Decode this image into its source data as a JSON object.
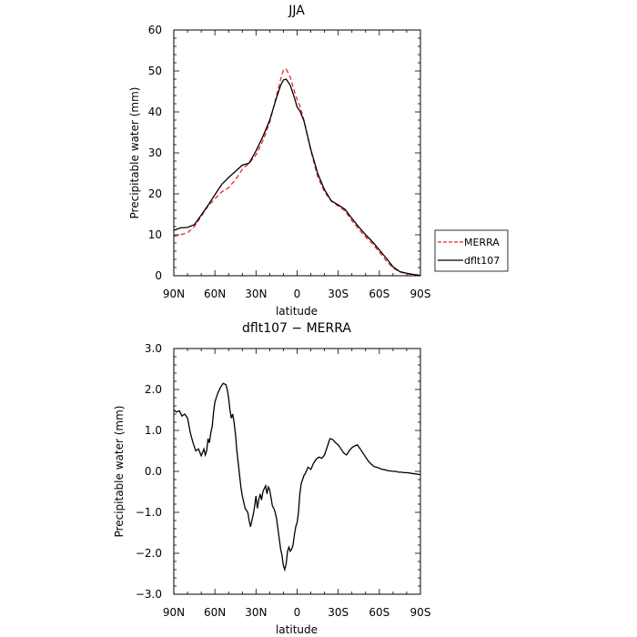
{
  "chart_data": [
    {
      "type": "line",
      "title": "JJA",
      "xlabel": "latitude",
      "ylabel": "Precipitable water (mm)",
      "xlim": [
        90,
        -90
      ],
      "ylim": [
        0,
        60
      ],
      "x_ticks": [
        90,
        60,
        30,
        0,
        -30,
        -60,
        -90
      ],
      "x_tick_labels": [
        "90N",
        "60N",
        "30N",
        "0",
        "30S",
        "60S",
        "90S"
      ],
      "y_ticks": [
        0,
        10,
        20,
        30,
        40,
        50,
        60
      ],
      "y_tick_labels": [
        "0",
        "10",
        "20",
        "30",
        "40",
        "50",
        "60"
      ],
      "grid": false,
      "legend_position": "right",
      "series": [
        {
          "name": "MERRA",
          "color": "#e8262a",
          "style": "dashed",
          "x": [
            90,
            85,
            80,
            75,
            70,
            65,
            60,
            55,
            50,
            45,
            40,
            35,
            30,
            25,
            20,
            15,
            12,
            10,
            8,
            5,
            2,
            0,
            -2,
            -5,
            -10,
            -15,
            -20,
            -25,
            -30,
            -35,
            -40,
            -45,
            -50,
            -55,
            -60,
            -65,
            -70,
            -75,
            -80,
            -85,
            -90
          ],
          "y": [
            9.6,
            10,
            10.5,
            12,
            14.5,
            17,
            18.8,
            20.5,
            21.5,
            23.5,
            26,
            27.5,
            29.5,
            33,
            37.5,
            44,
            48,
            50.2,
            50.5,
            48.5,
            45,
            43,
            41.5,
            38,
            30.5,
            24.2,
            20.5,
            18.2,
            17,
            15.8,
            13.5,
            11.3,
            9.5,
            7.8,
            5.8,
            3.7,
            1.9,
            0.9,
            0.5,
            0.2,
            0.1
          ]
        },
        {
          "name": "dflt107",
          "color": "#000000",
          "style": "solid",
          "x": [
            90,
            85,
            80,
            75,
            70,
            65,
            60,
            55,
            50,
            45,
            40,
            35,
            30,
            25,
            20,
            15,
            12,
            10,
            8,
            5,
            2,
            0,
            -2,
            -5,
            -10,
            -15,
            -20,
            -25,
            -30,
            -35,
            -40,
            -45,
            -50,
            -55,
            -60,
            -65,
            -70,
            -75,
            -80,
            -85,
            -90
          ],
          "y": [
            11.1,
            11.7,
            11.8,
            12.5,
            14.8,
            17.2,
            19.8,
            22.3,
            24,
            25.5,
            27,
            27.5,
            30.5,
            34,
            38,
            43.5,
            46.5,
            47.8,
            48,
            46.5,
            43.5,
            41.2,
            40.3,
            37.8,
            30.8,
            25,
            21,
            18.3,
            17.3,
            16.2,
            14,
            11.9,
            10,
            8.3,
            6.3,
            4.3,
            2.2,
            1,
            0.6,
            0.3,
            0.1
          ]
        }
      ]
    },
    {
      "type": "line",
      "title": "dflt107 − MERRA",
      "xlabel": "latitude",
      "ylabel": "Precipitable water (mm)",
      "xlim": [
        90,
        -90
      ],
      "ylim": [
        -3,
        3
      ],
      "x_ticks": [
        90,
        60,
        30,
        0,
        -30,
        -60,
        -90
      ],
      "x_tick_labels": [
        "90N",
        "60N",
        "30N",
        "0",
        "30S",
        "60S",
        "90S"
      ],
      "y_ticks": [
        -3,
        -2,
        -1,
        0,
        1,
        2,
        3
      ],
      "y_tick_labels": [
        "−3.0",
        "−2.0",
        "−1.0",
        "0.0",
        "1.0",
        "2.0",
        "3.0"
      ],
      "grid": false,
      "series": [
        {
          "color": "#000000",
          "style": "solid",
          "x": [
            90,
            88,
            86,
            84,
            82,
            80,
            78,
            76,
            74,
            72,
            70,
            68,
            67,
            66,
            65,
            64,
            63,
            62,
            61,
            60,
            58,
            56,
            54,
            52,
            51,
            50,
            49,
            48,
            47,
            46,
            45,
            44,
            43,
            42,
            41,
            40,
            38,
            36,
            35,
            34,
            32,
            31,
            30,
            29,
            28,
            27,
            26,
            25,
            24,
            23,
            22,
            21,
            20,
            19,
            18,
            17,
            16,
            15,
            14,
            13,
            12,
            11,
            10,
            9,
            8,
            7,
            6,
            5,
            4,
            3,
            2,
            1,
            0,
            -1,
            -2,
            -3,
            -4,
            -5,
            -6,
            -8,
            -10,
            -12,
            -14,
            -16,
            -18,
            -20,
            -22,
            -24,
            -26,
            -28,
            -30,
            -32,
            -34,
            -36,
            -38,
            -40,
            -42,
            -44,
            -46,
            -48,
            -50,
            -52,
            -54,
            -56,
            -58,
            -60,
            -62,
            -64,
            -66,
            -68,
            -70,
            -72,
            -74,
            -76,
            -78,
            -80,
            -82,
            -84,
            -86,
            -88,
            -90
          ],
          "y": [
            1.5,
            1.45,
            1.48,
            1.35,
            1.4,
            1.3,
            0.95,
            0.7,
            0.5,
            0.55,
            0.38,
            0.55,
            0.4,
            0.5,
            0.8,
            0.7,
            0.95,
            1.1,
            1.45,
            1.7,
            1.9,
            2.05,
            2.15,
            2.12,
            2.0,
            1.8,
            1.5,
            1.3,
            1.4,
            1.2,
            0.9,
            0.5,
            0.2,
            -0.1,
            -0.4,
            -0.6,
            -0.9,
            -1.0,
            -1.2,
            -1.35,
            -1.05,
            -0.85,
            -0.6,
            -0.9,
            -0.7,
            -0.55,
            -0.7,
            -0.5,
            -0.42,
            -0.35,
            -0.55,
            -0.38,
            -0.45,
            -0.65,
            -0.85,
            -0.9,
            -1.0,
            -1.15,
            -1.4,
            -1.65,
            -1.9,
            -2.05,
            -2.3,
            -2.4,
            -2.25,
            -1.95,
            -1.85,
            -1.95,
            -1.9,
            -1.8,
            -1.55,
            -1.35,
            -1.25,
            -1.0,
            -0.55,
            -0.3,
            -0.2,
            -0.1,
            -0.05,
            0.1,
            0.05,
            0.2,
            0.3,
            0.35,
            0.32,
            0.4,
            0.6,
            0.8,
            0.78,
            0.7,
            0.65,
            0.55,
            0.45,
            0.4,
            0.5,
            0.58,
            0.62,
            0.65,
            0.55,
            0.45,
            0.35,
            0.25,
            0.18,
            0.12,
            0.1,
            0.08,
            0.05,
            0.04,
            0.02,
            0.01,
            0.0,
            0.0,
            -0.02,
            -0.02,
            -0.03,
            -0.03,
            -0.04,
            -0.05,
            -0.06,
            -0.07,
            -0.08
          ]
        }
      ]
    }
  ]
}
